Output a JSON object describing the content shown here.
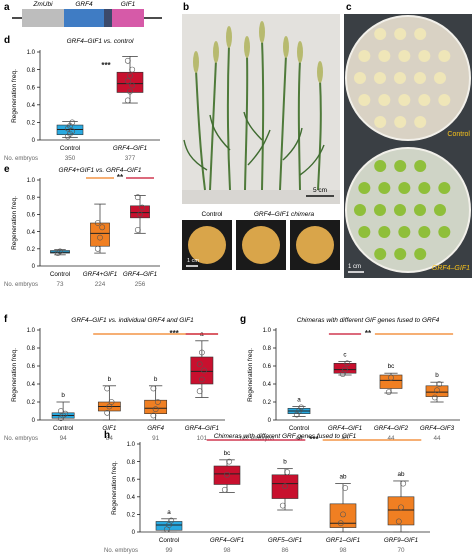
{
  "panel_a": {
    "label": "a",
    "segments": [
      "ZmUbi",
      "GRF4",
      "GIF1"
    ],
    "colors": {
      "zmubi": "#bdbdbd",
      "grf4": "#3f7cc4",
      "linker": "#3c4a6b",
      "gif1": "#d65aa8"
    }
  },
  "panel_b": {
    "label": "b",
    "scale_top": "5 cm",
    "scale_bottom": "1 cm",
    "caption_control": "Control",
    "caption_chimera": "GRF4–GIF1 chimera"
  },
  "panel_c": {
    "label": "c",
    "text_control": "Control",
    "text_chimera": "GRF4–GIF1",
    "scale": "1 cm"
  },
  "colors": {
    "control": "#29a9e0",
    "chimera": "#c8102e",
    "grf": "#f07f22",
    "sig_red": "#c8102e",
    "sig_orange": "#f07f22"
  },
  "chart_data": [
    {
      "id": "d",
      "type": "box",
      "label": "d",
      "title": "GRF4–GIF1 vs. control",
      "ylabel": "Regeneration freq.",
      "ylim": [
        0,
        1
      ],
      "yticks": [
        "0",
        "0.2",
        "0.4",
        "0.6",
        "0.8",
        "1.0"
      ],
      "embryo_label": "No. embryos",
      "categories": [
        "Control",
        "GRF4–GIF1"
      ],
      "embryos": [
        "350",
        "377"
      ],
      "boxes": [
        {
          "min": 0.03,
          "q1": 0.06,
          "median": 0.12,
          "q3": 0.17,
          "max": 0.21,
          "points": [
            0.04,
            0.07,
            0.1,
            0.13,
            0.16,
            0.2
          ],
          "color": "control"
        },
        {
          "min": 0.42,
          "q1": 0.54,
          "median": 0.64,
          "q3": 0.77,
          "max": 0.95,
          "points": [
            0.45,
            0.55,
            0.62,
            0.67,
            0.73,
            0.8,
            0.9
          ],
          "color": "chimera"
        }
      ],
      "significance": [
        {
          "text": "***",
          "color": "#222222"
        }
      ]
    },
    {
      "id": "e",
      "type": "box",
      "label": "e",
      "title": "GRF4+GIF1 vs. GRF4–GIF1",
      "ylabel": "Regeneration freq.",
      "ylim": [
        0,
        1
      ],
      "yticks": [
        "0",
        "0.2",
        "0.4",
        "0.6",
        "0.8",
        "1.0"
      ],
      "embryo_label": "No. embryos",
      "categories": [
        "Control",
        "GRF4+GIF1",
        "GRF4–GIF1"
      ],
      "embryos": [
        "73",
        "224",
        "256"
      ],
      "boxes": [
        {
          "min": 0.13,
          "q1": 0.15,
          "median": 0.16,
          "q3": 0.18,
          "max": 0.19,
          "points": [
            0.15,
            0.17
          ],
          "color": "control"
        },
        {
          "min": 0.15,
          "q1": 0.23,
          "median": 0.38,
          "q3": 0.5,
          "max": 0.72,
          "points": [
            0.2,
            0.33,
            0.45,
            0.5
          ],
          "color": "grf"
        },
        {
          "min": 0.38,
          "q1": 0.56,
          "median": 0.62,
          "q3": 0.7,
          "max": 0.82,
          "points": [
            0.42,
            0.6,
            0.68,
            0.8
          ],
          "color": "chimera"
        }
      ],
      "significance": [
        {
          "text": "**",
          "color": "#222222"
        }
      ]
    },
    {
      "id": "f",
      "type": "box",
      "label": "f",
      "title": "GRF4–GIF1 vs. individual GRF4 and GIF1",
      "ylabel": "Regeneration freq.",
      "ylim": [
        0,
        1
      ],
      "yticks": [
        "0",
        "0.2",
        "0.4",
        "0.6",
        "0.8",
        "1.0"
      ],
      "embryo_label": "No. embryos",
      "categories": [
        "Control",
        "GIF1",
        "GRF4",
        "GRF4–GIF1"
      ],
      "embryos": [
        "94",
        "84",
        "91",
        "101"
      ],
      "letters": [
        "b",
        "b",
        "b",
        "a"
      ],
      "boxes": [
        {
          "min": 0.0,
          "q1": 0.02,
          "median": 0.05,
          "q3": 0.08,
          "max": 0.2,
          "points": [
            0.02,
            0.05,
            0.07,
            0.1
          ],
          "color": "control"
        },
        {
          "min": 0.0,
          "q1": 0.1,
          "median": 0.15,
          "q3": 0.2,
          "max": 0.38,
          "points": [
            0.08,
            0.15,
            0.2,
            0.35
          ],
          "color": "grf"
        },
        {
          "min": 0.0,
          "q1": 0.07,
          "median": 0.13,
          "q3": 0.22,
          "max": 0.38,
          "points": [
            0.05,
            0.12,
            0.2,
            0.35
          ],
          "color": "grf"
        },
        {
          "min": 0.25,
          "q1": 0.4,
          "median": 0.54,
          "q3": 0.7,
          "max": 0.88,
          "points": [
            0.32,
            0.45,
            0.55,
            0.62,
            0.75
          ],
          "color": "chimera"
        }
      ],
      "significance": [
        {
          "text": "***",
          "color": "#222222"
        }
      ]
    },
    {
      "id": "g",
      "type": "box",
      "label": "g",
      "title": "Chimeras with different GIF genes fused to GRF4",
      "ylabel": "Regeneration freq.",
      "ylim": [
        0,
        1
      ],
      "yticks": [
        "0",
        "0.2",
        "0.4",
        "0.6",
        "0.8",
        "1.0"
      ],
      "embryo_label": "No. embryos",
      "categories": [
        "Control",
        "GRF4–GIF1",
        "GRF4–GIF2",
        "GRF4–GIF3"
      ],
      "embryos": [
        "44",
        "45",
        "44",
        "44"
      ],
      "letters": [
        "a",
        "c",
        "bc",
        "b"
      ],
      "boxes": [
        {
          "min": 0.04,
          "q1": 0.07,
          "median": 0.1,
          "q3": 0.13,
          "max": 0.15,
          "points": [
            0.06,
            0.1,
            0.14
          ],
          "color": "control"
        },
        {
          "min": 0.5,
          "q1": 0.52,
          "median": 0.56,
          "q3": 0.63,
          "max": 0.65,
          "points": [
            0.51,
            0.56,
            0.63
          ],
          "color": "chimera"
        },
        {
          "min": 0.3,
          "q1": 0.35,
          "median": 0.44,
          "q3": 0.5,
          "max": 0.52,
          "points": [
            0.31,
            0.47
          ],
          "color": "grf"
        },
        {
          "min": 0.2,
          "q1": 0.26,
          "median": 0.31,
          "q3": 0.38,
          "max": 0.42,
          "points": [
            0.25,
            0.33,
            0.4
          ],
          "color": "grf"
        }
      ],
      "significance": [
        {
          "text": "**",
          "color": "#222222"
        }
      ]
    },
    {
      "id": "h",
      "type": "box",
      "label": "h",
      "title": "Chimeras with different GRF genes fused to GIF1",
      "ylabel": "Regeneration freq.",
      "ylim": [
        0,
        1
      ],
      "yticks": [
        "0",
        "0.2",
        "0.4",
        "0.6",
        "0.8",
        "1.0"
      ],
      "embryo_label": "No. embryos",
      "categories": [
        "Control",
        "GRF4–GIF1",
        "GRF5–GIF1",
        "GRF1–GIF1",
        "GRF9–GIF1"
      ],
      "embryos": [
        "99",
        "98",
        "86",
        "98",
        "70"
      ],
      "letters": [
        "a",
        "bc",
        "b",
        "ab",
        "ab"
      ],
      "boxes": [
        {
          "min": 0.0,
          "q1": 0.02,
          "median": 0.08,
          "q3": 0.12,
          "max": 0.15,
          "points": [
            0.03,
            0.08,
            0.13
          ],
          "color": "control"
        },
        {
          "min": 0.45,
          "q1": 0.54,
          "median": 0.66,
          "q3": 0.75,
          "max": 0.82,
          "points": [
            0.48,
            0.65,
            0.8
          ],
          "color": "chimera"
        },
        {
          "min": 0.25,
          "q1": 0.38,
          "median": 0.55,
          "q3": 0.65,
          "max": 0.72,
          "points": [
            0.3,
            0.52,
            0.68
          ],
          "color": "chimera"
        },
        {
          "min": 0.0,
          "q1": 0.05,
          "median": 0.1,
          "q3": 0.32,
          "max": 0.55,
          "points": [
            0.1,
            0.2,
            0.5
          ],
          "color": "grf"
        },
        {
          "min": 0.0,
          "q1": 0.08,
          "median": 0.25,
          "q3": 0.4,
          "max": 0.58,
          "points": [
            0.12,
            0.28,
            0.55
          ],
          "color": "grf"
        }
      ],
      "significance": [
        {
          "text": "***",
          "color": "#222222"
        }
      ]
    }
  ]
}
